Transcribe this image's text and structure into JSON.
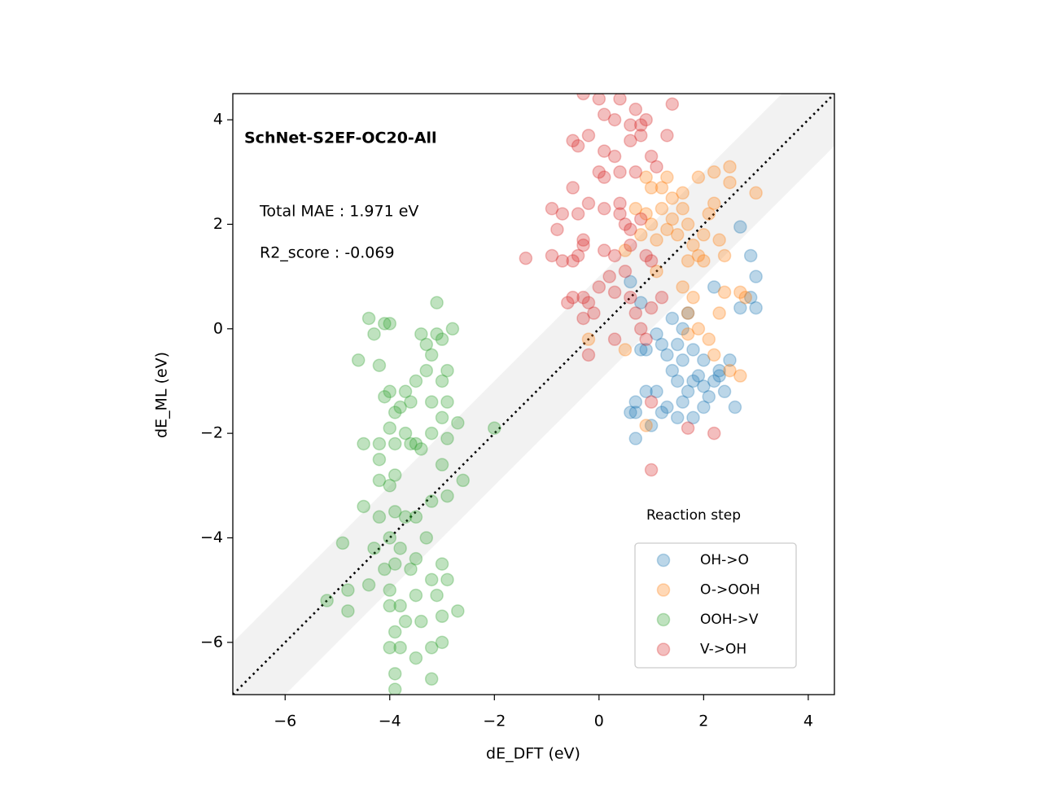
{
  "chart_data": {
    "type": "scatter",
    "title": "SchNet-S2EF-OC20-All",
    "annotations": [
      "Total MAE : 1.971 eV",
      "R2_score : -0.069"
    ],
    "x_label": "dE_DFT (eV)",
    "y_label": "dE_ML (eV)",
    "xlim": [
      -7,
      4.5
    ],
    "ylim": [
      -7,
      4.5
    ],
    "xticks": [
      {
        "value": -6,
        "label": "−6"
      },
      {
        "value": -4,
        "label": "−4"
      },
      {
        "value": -2,
        "label": "−2"
      },
      0,
      2,
      4
    ],
    "yticks": [
      {
        "value": -6,
        "label": "−6"
      },
      {
        "value": -4,
        "label": "−4"
      },
      {
        "value": -2,
        "label": "−2"
      },
      0,
      2,
      4
    ],
    "parity_band": 1,
    "legend_title": "Reaction step",
    "legend_position": "lower right",
    "series": [
      {
        "name": "OH->O",
        "color": "#1f77b4",
        "x": [
          0.6,
          0.7,
          0.7,
          0.9,
          1.1,
          1.2,
          1.0,
          0.7,
          1.3,
          1.5,
          1.6,
          1.7,
          1.8,
          1.9,
          2.0,
          2.1,
          2.2,
          2.3,
          2.4,
          2.0,
          1.8,
          1.5,
          1.4,
          1.3,
          1.5,
          1.6,
          1.7,
          1.8,
          1.2,
          1.1,
          1.4,
          0.9,
          0.8,
          0.6,
          0.8,
          2.2,
          2.5,
          2.6,
          2.7,
          2.9,
          3.0,
          3.0,
          2.9,
          2.7,
          1.6,
          2.0,
          2.3
        ],
        "values": [
          -1.6,
          -1.6,
          -1.4,
          -1.2,
          -1.2,
          -1.6,
          -1.85,
          -2.1,
          -1.5,
          -1.7,
          -1.4,
          -1.2,
          -1.0,
          -0.9,
          -1.1,
          -1.3,
          -1.0,
          -0.8,
          -1.2,
          -1.5,
          -1.7,
          -1.0,
          -0.8,
          -0.5,
          -0.3,
          0.0,
          0.3,
          -0.4,
          -0.3,
          -0.1,
          0.2,
          -0.4,
          -0.4,
          0.9,
          0.5,
          0.8,
          -0.6,
          -1.5,
          0.4,
          0.6,
          0.4,
          1.0,
          1.4,
          1.95,
          -0.6,
          -0.6,
          -0.9
        ]
      },
      {
        "name": "O->OOH",
        "color": "#ff7f0e",
        "x": [
          0.5,
          0.8,
          0.9,
          1.0,
          1.1,
          1.2,
          1.3,
          1.4,
          1.5,
          1.4,
          1.6,
          1.7,
          1.8,
          1.9,
          2.0,
          2.1,
          2.2,
          2.3,
          1.2,
          1.0,
          0.9,
          1.3,
          1.6,
          1.9,
          2.2,
          2.5,
          2.5,
          3.0,
          2.4,
          2.0,
          1.7,
          1.6,
          1.8,
          1.7,
          1.9,
          1.7,
          2.1,
          2.3,
          2.4,
          2.7,
          2.8,
          2.7,
          2.5,
          2.2,
          0.5,
          -0.2,
          0.9,
          1.1,
          0.7
        ],
        "values": [
          1.5,
          1.8,
          2.2,
          2.0,
          1.7,
          2.3,
          1.9,
          2.1,
          1.8,
          2.5,
          2.3,
          2.0,
          1.6,
          1.4,
          1.8,
          2.2,
          2.4,
          1.7,
          2.7,
          2.7,
          2.9,
          2.9,
          2.6,
          2.9,
          3.0,
          3.1,
          2.8,
          2.6,
          1.4,
          1.3,
          1.3,
          0.8,
          0.6,
          0.3,
          0.0,
          -0.1,
          -0.2,
          0.3,
          0.7,
          0.7,
          0.6,
          -0.9,
          -0.8,
          -0.5,
          -0.4,
          -0.2,
          -1.85,
          1.1,
          2.3
        ]
      },
      {
        "name": "OOH->V",
        "color": "#2ca02c",
        "x": [
          -4.4,
          -4.3,
          -4.0,
          -4.1,
          -4.6,
          -4.2,
          -3.4,
          -3.3,
          -3.1,
          -3.0,
          -3.1,
          -2.8,
          -3.2,
          -3.3,
          -2.9,
          -3.5,
          -3.0,
          -3.2,
          -2.9,
          -3.0,
          -2.7,
          -3.7,
          -4.0,
          -4.1,
          -3.9,
          -3.8,
          -3.6,
          -4.0,
          -3.7,
          -3.5,
          -3.4,
          -3.6,
          -3.9,
          -4.2,
          -4.5,
          -4.2,
          -3.2,
          -2.9,
          -3.0,
          -2.6,
          -3.9,
          -4.0,
          -4.2,
          -4.2,
          -3.9,
          -3.7,
          -3.5,
          -3.2,
          -2.9,
          -4.5,
          -4.9,
          -4.3,
          -4.0,
          -3.8,
          -3.5,
          -3.3,
          -3.0,
          -2.9,
          -3.2,
          -3.6,
          -3.9,
          -4.1,
          -4.4,
          -4.0,
          -3.8,
          -3.5,
          -3.1,
          -2.7,
          -3.0,
          -3.4,
          -3.7,
          -4.0,
          -4.8,
          -5.2,
          -4.8,
          -3.9,
          -3.8,
          -4.0,
          -3.5,
          -3.2,
          -3.0,
          -3.2,
          -3.9,
          -3.9,
          -2.0
        ],
        "values": [
          0.2,
          -0.1,
          0.1,
          0.1,
          -0.6,
          -0.7,
          -0.1,
          -0.3,
          -0.1,
          -0.2,
          0.5,
          0.0,
          -0.5,
          -0.8,
          -0.8,
          -1.0,
          -1.0,
          -1.4,
          -1.4,
          -1.7,
          -1.8,
          -1.2,
          -1.2,
          -1.3,
          -1.6,
          -1.5,
          -1.4,
          -1.9,
          -2.0,
          -2.2,
          -2.3,
          -2.2,
          -2.2,
          -2.2,
          -2.2,
          -2.5,
          -2.0,
          -2.1,
          -2.6,
          -2.9,
          -2.8,
          -3.0,
          -2.9,
          -3.6,
          -3.5,
          -3.6,
          -3.6,
          -3.3,
          -3.2,
          -3.4,
          -4.1,
          -4.2,
          -4.0,
          -4.2,
          -4.4,
          -4.0,
          -4.5,
          -4.8,
          -4.8,
          -4.6,
          -4.5,
          -4.6,
          -4.9,
          -5.0,
          -5.3,
          -5.1,
          -5.1,
          -5.4,
          -5.5,
          -5.6,
          -5.6,
          -5.3,
          -5.0,
          -5.2,
          -5.4,
          -5.8,
          -6.1,
          -6.1,
          -6.3,
          -6.1,
          -6.0,
          -6.7,
          -6.6,
          -6.9,
          -1.9
        ]
      },
      {
        "name": "V->OH",
        "color": "#d62728",
        "x": [
          -0.3,
          0.0,
          0.4,
          0.7,
          0.1,
          0.3,
          0.6,
          0.8,
          0.9,
          0.8,
          0.6,
          1.3,
          1.0,
          1.1,
          0.7,
          0.3,
          0.1,
          -0.2,
          -0.4,
          -0.5,
          0.0,
          0.1,
          0.4,
          -0.5,
          -0.9,
          -0.7,
          -0.4,
          -0.2,
          0.1,
          0.4,
          0.5,
          0.6,
          0.8,
          -0.3,
          -0.5,
          -0.7,
          -0.3,
          0.1,
          0.3,
          0.6,
          0.9,
          1.0,
          0.5,
          0.2,
          0.0,
          -0.3,
          -0.5,
          -0.6,
          -0.2,
          0.3,
          0.6,
          0.7,
          0.8,
          1.0,
          1.2,
          0.9,
          0.3,
          -0.3,
          -0.1,
          -0.2,
          1.0,
          2.2,
          1.7,
          1.0,
          1.4,
          -1.4,
          -0.8,
          -0.9,
          -0.4,
          0.4
        ],
        "values": [
          4.5,
          4.4,
          4.4,
          4.2,
          4.1,
          4.0,
          3.9,
          3.9,
          4.0,
          3.7,
          3.6,
          3.7,
          3.3,
          3.1,
          3.0,
          3.3,
          3.4,
          3.7,
          3.5,
          3.6,
          3.0,
          2.9,
          3.0,
          2.7,
          2.3,
          2.2,
          2.2,
          2.4,
          2.3,
          2.2,
          2.0,
          1.9,
          2.1,
          1.6,
          1.3,
          1.3,
          1.7,
          1.5,
          1.4,
          1.6,
          1.4,
          1.3,
          1.1,
          1.0,
          0.8,
          0.6,
          0.6,
          0.5,
          0.5,
          0.7,
          0.6,
          0.3,
          0.0,
          0.4,
          0.6,
          -0.2,
          -0.2,
          0.2,
          0.3,
          -0.5,
          -2.7,
          -2.0,
          -1.9,
          -1.4,
          4.3,
          1.35,
          1.9,
          1.4,
          1.4,
          2.4
        ]
      }
    ]
  }
}
